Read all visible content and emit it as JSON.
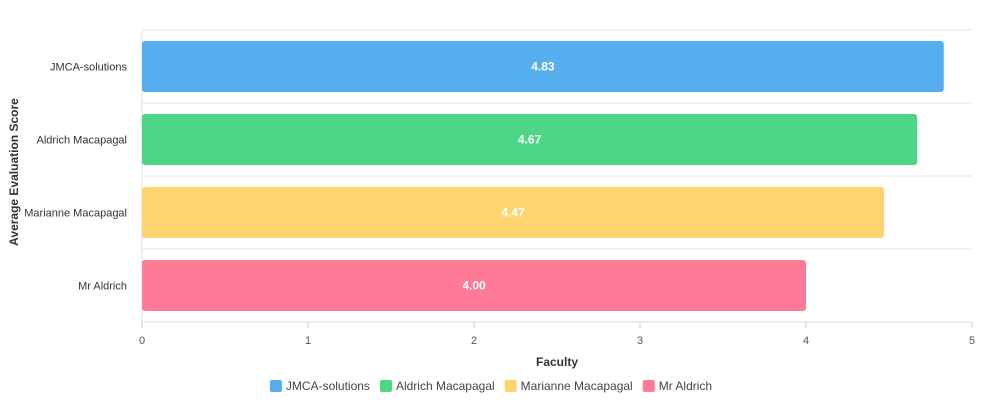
{
  "chart_data": {
    "type": "bar",
    "orientation": "horizontal",
    "categories": [
      "JMCA-solutions",
      "Aldrich Macapagal",
      "Marianne Macapagal",
      "Mr Aldrich"
    ],
    "values": [
      4.83,
      4.67,
      4.47,
      4.0
    ],
    "value_labels": [
      "4.83",
      "4.67",
      "4.47",
      "4.00"
    ],
    "colors": [
      "#55AEEE",
      "#4CD686",
      "#FED46F",
      "#FF7A97"
    ],
    "xlabel": "Faculty",
    "ylabel": "Average Evaluation Score",
    "xlim": [
      0,
      5
    ],
    "x_ticks": [
      "0",
      "1",
      "2",
      "3",
      "4",
      "5"
    ],
    "grid": true,
    "legend_position": "bottom",
    "legend": [
      "JMCA-solutions",
      "Aldrich Macapagal",
      "Marianne Macapagal",
      "Mr Aldrich"
    ]
  }
}
